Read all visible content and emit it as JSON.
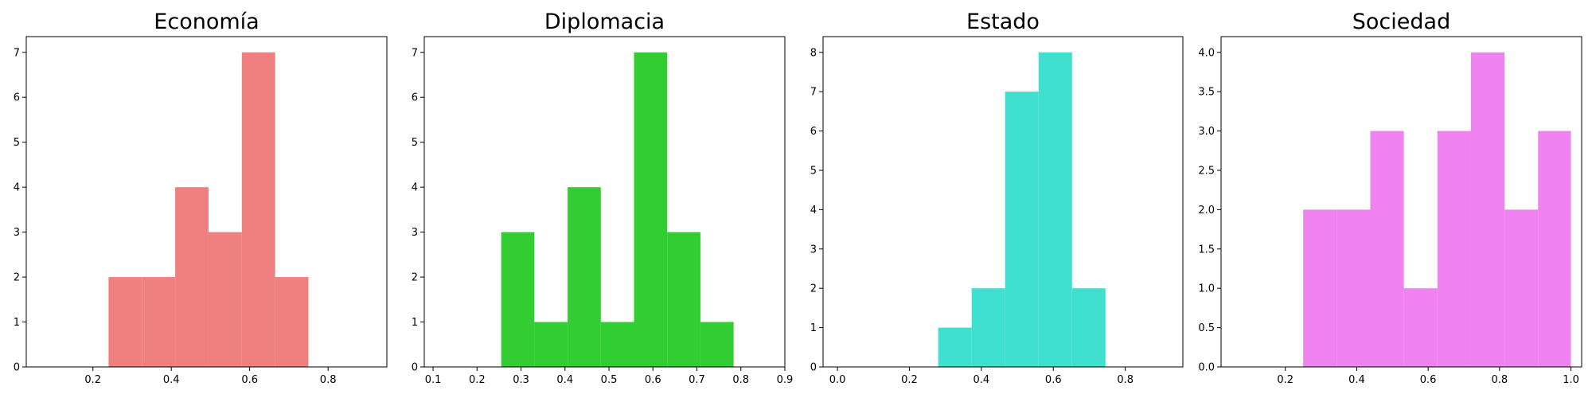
{
  "chart_data": [
    {
      "type": "bar",
      "subtype": "histogram",
      "title": "Economía",
      "color": "#f08080",
      "xlim": [
        0.03,
        0.95
      ],
      "ylim": [
        0,
        7.35
      ],
      "xticks": [
        "0.2",
        "0.4",
        "0.6",
        "0.8"
      ],
      "yticks": [
        "0",
        "1",
        "2",
        "3",
        "4",
        "5",
        "6",
        "7"
      ],
      "bins": [
        {
          "x0": 0.24,
          "x1": 0.325,
          "count": 2
        },
        {
          "x0": 0.325,
          "x1": 0.41,
          "count": 2
        },
        {
          "x0": 0.41,
          "x1": 0.495,
          "count": 4
        },
        {
          "x0": 0.495,
          "x1": 0.58,
          "count": 3
        },
        {
          "x0": 0.58,
          "x1": 0.665,
          "count": 7
        },
        {
          "x0": 0.665,
          "x1": 0.75,
          "count": 2
        }
      ]
    },
    {
      "type": "bar",
      "subtype": "histogram",
      "title": "Diplomacia",
      "color": "#32cd32",
      "xlim": [
        0.08,
        0.9
      ],
      "ylim": [
        0,
        7.35
      ],
      "xticks": [
        "0.1",
        "0.2",
        "0.3",
        "0.4",
        "0.5",
        "0.6",
        "0.7",
        "0.8",
        "0.9"
      ],
      "yticks": [
        "0",
        "1",
        "2",
        "3",
        "4",
        "5",
        "6",
        "7"
      ],
      "bins": [
        {
          "x0": 0.255,
          "x1": 0.3305,
          "count": 3
        },
        {
          "x0": 0.3305,
          "x1": 0.406,
          "count": 1
        },
        {
          "x0": 0.406,
          "x1": 0.4815,
          "count": 4
        },
        {
          "x0": 0.4815,
          "x1": 0.557,
          "count": 1
        },
        {
          "x0": 0.557,
          "x1": 0.6325,
          "count": 7
        },
        {
          "x0": 0.6325,
          "x1": 0.708,
          "count": 3
        },
        {
          "x0": 0.708,
          "x1": 0.7835,
          "count": 1
        }
      ]
    },
    {
      "type": "bar",
      "subtype": "histogram",
      "title": "Estado",
      "color": "#40e0d0",
      "xlim": [
        -0.04,
        0.96
      ],
      "ylim": [
        0,
        8.4
      ],
      "xticks": [
        "0.0",
        "0.2",
        "0.4",
        "0.6",
        "0.8"
      ],
      "yticks": [
        "0",
        "1",
        "2",
        "3",
        "4",
        "5",
        "6",
        "7",
        "8"
      ],
      "bins": [
        {
          "x0": 0.28,
          "x1": 0.373,
          "count": 1
        },
        {
          "x0": 0.373,
          "x1": 0.466,
          "count": 2
        },
        {
          "x0": 0.466,
          "x1": 0.559,
          "count": 7
        },
        {
          "x0": 0.559,
          "x1": 0.652,
          "count": 8
        },
        {
          "x0": 0.652,
          "x1": 0.745,
          "count": 2
        }
      ]
    },
    {
      "type": "bar",
      "subtype": "histogram",
      "title": "Sociedad",
      "color": "#ee82ee",
      "xlim": [
        0.02,
        1.03
      ],
      "ylim": [
        0,
        4.2
      ],
      "xticks": [
        "0.2",
        "0.4",
        "0.6",
        "0.8",
        "1.0"
      ],
      "yticks": [
        "0.0",
        "0.5",
        "1.0",
        "1.5",
        "2.0",
        "2.5",
        "3.0",
        "3.5",
        "4.0"
      ],
      "bins": [
        {
          "x0": 0.25,
          "x1": 0.344,
          "count": 2
        },
        {
          "x0": 0.344,
          "x1": 0.438,
          "count": 2
        },
        {
          "x0": 0.438,
          "x1": 0.532,
          "count": 3
        },
        {
          "x0": 0.532,
          "x1": 0.626,
          "count": 1
        },
        {
          "x0": 0.626,
          "x1": 0.72,
          "count": 3
        },
        {
          "x0": 0.72,
          "x1": 0.814,
          "count": 4
        },
        {
          "x0": 0.814,
          "x1": 0.908,
          "count": 2
        },
        {
          "x0": 0.908,
          "x1": 1.0,
          "count": 3
        }
      ]
    }
  ]
}
